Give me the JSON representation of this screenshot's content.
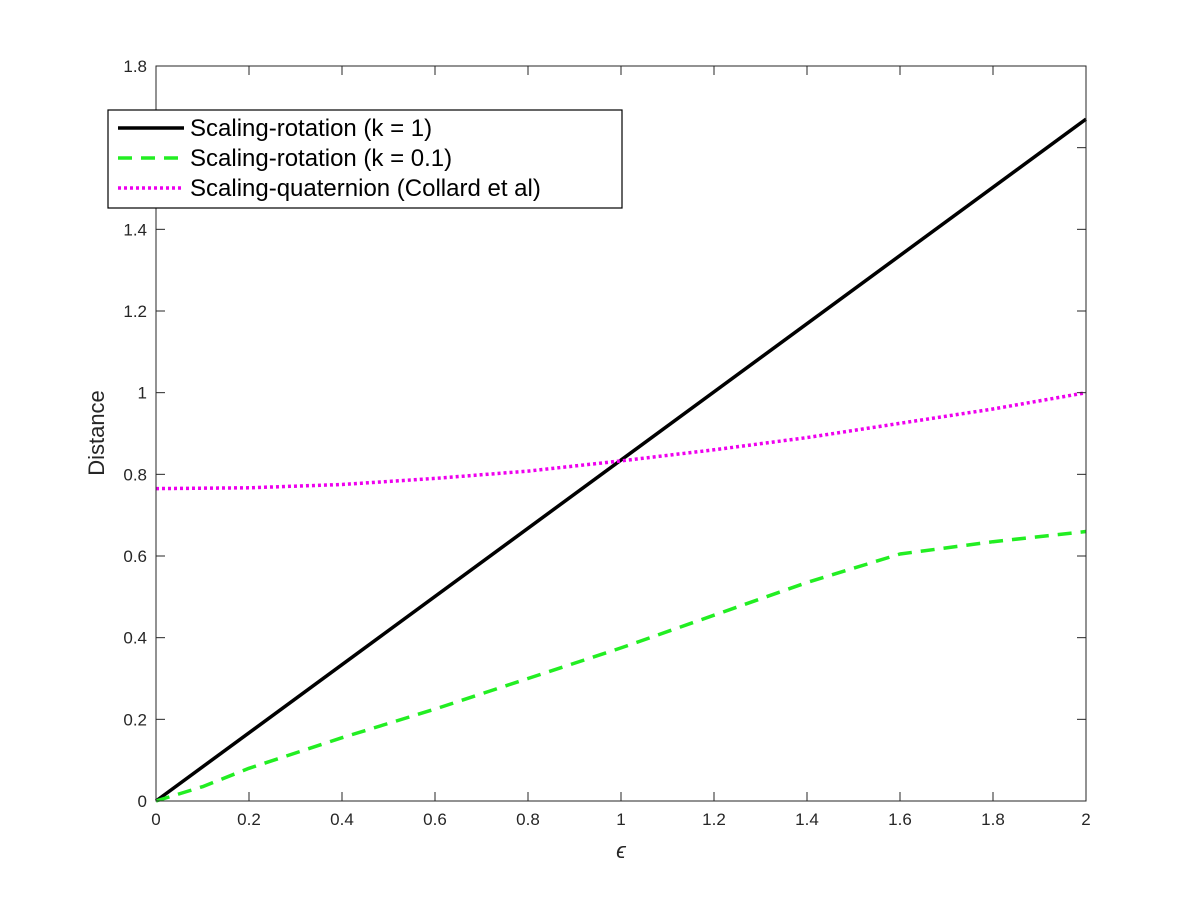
{
  "chart_data": {
    "type": "line",
    "title": "",
    "xlabel": "ϵ",
    "ylabel": "Distance",
    "xlim": [
      0,
      2
    ],
    "ylim": [
      0,
      1.8
    ],
    "xticks": [
      0,
      0.2,
      0.4,
      0.6,
      0.8,
      1,
      1.2,
      1.4,
      1.6,
      1.8,
      2
    ],
    "xtick_labels": [
      "0",
      "0.2",
      "0.4",
      "0.6",
      "0.8",
      "1",
      "1.2",
      "1.4",
      "1.6",
      "1.8",
      "2"
    ],
    "yticks": [
      0,
      0.2,
      0.4,
      0.6,
      0.8,
      1,
      1.2,
      1.4,
      1.6,
      1.8
    ],
    "ytick_labels": [
      "0",
      "0.2",
      "0.4",
      "0.6",
      "0.8",
      "1",
      "1.2",
      "1.4",
      "1.6",
      "1.8"
    ],
    "grid": false,
    "legend_position": "top-left",
    "series": [
      {
        "name": "Scaling-rotation (k = 1)",
        "color": "#000000",
        "style": "solid",
        "x": [
          0,
          2
        ],
        "y": [
          0,
          1.67
        ]
      },
      {
        "name": "Scaling-rotation (k = 0.1)",
        "color": "#22ee22",
        "style": "dashed",
        "x": [
          0,
          0.1,
          0.2,
          0.4,
          0.6,
          0.8,
          1.0,
          1.2,
          1.4,
          1.6,
          1.8,
          2.0
        ],
        "y": [
          0,
          0.035,
          0.08,
          0.155,
          0.225,
          0.3,
          0.375,
          0.455,
          0.535,
          0.605,
          0.635,
          0.66
        ]
      },
      {
        "name": "Scaling-quaternion (Collard et al)",
        "color": "#ee00ee",
        "style": "dotted",
        "x": [
          0,
          0.2,
          0.4,
          0.6,
          0.8,
          1.0,
          1.2,
          1.4,
          1.6,
          1.8,
          2.0
        ],
        "y": [
          0.765,
          0.767,
          0.775,
          0.79,
          0.808,
          0.833,
          0.86,
          0.89,
          0.925,
          0.96,
          1.0
        ]
      }
    ]
  }
}
